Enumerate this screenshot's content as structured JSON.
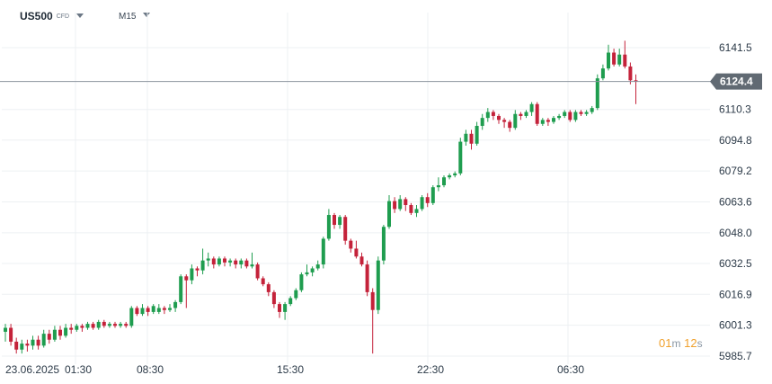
{
  "toolbar": {
    "symbol": "US500",
    "symbol_type": "CFD",
    "timeframe": "M15"
  },
  "countdown": {
    "minutes": "01",
    "min_unit": "m",
    "seconds": "12",
    "sec_unit": "s"
  },
  "colors": {
    "up": "#1f9d4f",
    "down": "#c4223a",
    "grid": "#edf0f3",
    "price_line": "#8c959e",
    "price_label_bg": "#616a73",
    "axis_text": "#2c3a48"
  },
  "chart_data": {
    "type": "candlestick",
    "title": "",
    "xlabel": "",
    "ylabel": "",
    "ylim": [
      5980,
      6150
    ],
    "y_ticks": [
      "6141.5",
      "6124.4",
      "6110.3",
      "6094.8",
      "6079.2",
      "6063.6",
      "6048.0",
      "6032.5",
      "6016.9",
      "6001.3",
      "5985.7"
    ],
    "current_price": "6124.4",
    "x_ticks": [
      "23.06.2025",
      "01:30",
      "08:30",
      "15:30",
      "22:30",
      "06:30"
    ],
    "grid": true,
    "candles": [
      [
        5998,
        6000,
        5993,
        6002
      ],
      [
        6000,
        5993,
        5991,
        6002
      ],
      [
        5993,
        5989,
        5987,
        5995
      ],
      [
        5989,
        5992,
        5987,
        5994
      ],
      [
        5992,
        5991,
        5988,
        5994
      ],
      [
        5991,
        5994,
        5989,
        5996
      ],
      [
        5994,
        5991,
        5989,
        5996
      ],
      [
        5991,
        5997,
        5990,
        5999
      ],
      [
        5997,
        5994,
        5992,
        5999
      ],
      [
        5994,
        5999,
        5993,
        6001
      ],
      [
        5999,
        5996,
        5994,
        6001
      ],
      [
        5996,
        6000,
        5995,
        6002
      ],
      [
        6000,
        5999,
        5997,
        6002
      ],
      [
        5999,
        6001,
        5998,
        6002
      ],
      [
        6001,
        6000,
        5998,
        6002
      ],
      [
        6000,
        6002,
        5999,
        6003
      ],
      [
        6002,
        6000,
        5999,
        6003
      ],
      [
        6000,
        6003,
        5999,
        6004
      ],
      [
        6003,
        6001,
        6000,
        6004
      ],
      [
        6001,
        6002,
        6000,
        6003
      ],
      [
        6002,
        6001,
        6000,
        6003
      ],
      [
        6001,
        6002,
        6000,
        6003
      ],
      [
        6002,
        6001,
        6000,
        6003
      ],
      [
        6001,
        6010,
        6000,
        6011
      ],
      [
        6010,
        6007,
        6006,
        6011
      ],
      [
        6007,
        6010,
        6006,
        6012
      ],
      [
        6010,
        6008,
        6006,
        6011
      ],
      [
        6008,
        6011,
        6007,
        6012
      ],
      [
        6008,
        6010,
        6007,
        6012
      ],
      [
        6010,
        6009,
        6007,
        6011
      ],
      [
        6009,
        6010,
        6008,
        6012
      ],
      [
        6010,
        6013,
        6008,
        6014
      ],
      [
        6013,
        6026,
        6012,
        6027
      ],
      [
        6026,
        6024,
        6010,
        6027
      ],
      [
        6024,
        6030,
        6022,
        6032
      ],
      [
        6030,
        6029,
        6026,
        6031
      ],
      [
        6029,
        6034,
        6027,
        6040
      ],
      [
        6034,
        6035,
        6031,
        6038
      ],
      [
        6035,
        6032,
        6030,
        6036
      ],
      [
        6032,
        6035,
        6031,
        6036
      ],
      [
        6035,
        6033,
        6031,
        6036
      ],
      [
        6033,
        6034,
        6031,
        6035
      ],
      [
        6034,
        6032,
        6030,
        6035
      ],
      [
        6032,
        6034,
        6030,
        6035
      ],
      [
        6034,
        6031,
        6030,
        6035
      ],
      [
        6031,
        6032,
        6030,
        6038
      ],
      [
        6032,
        6025,
        6024,
        6033
      ],
      [
        6025,
        6022,
        6021,
        6026
      ],
      [
        6022,
        6018,
        6016,
        6023
      ],
      [
        6018,
        6012,
        6010,
        6019
      ],
      [
        6012,
        6008,
        6005,
        6013
      ],
      [
        6008,
        6012,
        6004,
        6013
      ],
      [
        6012,
        6015,
        6011,
        6016
      ],
      [
        6015,
        6019,
        6014,
        6020
      ],
      [
        6019,
        6027,
        6018,
        6028
      ],
      [
        6027,
        6028,
        6026,
        6032
      ],
      [
        6028,
        6030,
        6026,
        6031
      ],
      [
        6030,
        6032,
        6029,
        6034
      ],
      [
        6032,
        6045,
        6030,
        6046
      ],
      [
        6045,
        6057,
        6044,
        6060
      ],
      [
        6057,
        6052,
        6050,
        6058
      ],
      [
        6052,
        6056,
        6050,
        6057
      ],
      [
        6056,
        6044,
        6042,
        6057
      ],
      [
        6044,
        6040,
        6038,
        6045
      ],
      [
        6040,
        6036,
        6035,
        6044
      ],
      [
        6036,
        6032,
        6031,
        6038
      ],
      [
        6032,
        6018,
        6016,
        6034
      ],
      [
        6018,
        6009,
        5987,
        6020
      ],
      [
        6009,
        6034,
        6007,
        6036
      ],
      [
        6034,
        6051,
        6032,
        6052
      ],
      [
        6051,
        6064,
        6050,
        6067
      ],
      [
        6064,
        6060,
        6058,
        6066
      ],
      [
        6060,
        6065,
        6059,
        6067
      ],
      [
        6065,
        6062,
        6059,
        6066
      ],
      [
        6062,
        6058,
        6057,
        6063
      ],
      [
        6058,
        6060,
        6056,
        6062
      ],
      [
        6060,
        6066,
        6059,
        6067
      ],
      [
        6066,
        6063,
        6061,
        6068
      ],
      [
        6063,
        6071,
        6062,
        6072
      ],
      [
        6071,
        6072,
        6069,
        6076
      ],
      [
        6072,
        6076,
        6071,
        6077
      ],
      [
        6076,
        6077,
        6075,
        6078
      ],
      [
        6077,
        6078,
        6076,
        6079
      ],
      [
        6078,
        6094,
        6077,
        6096
      ],
      [
        6094,
        6098,
        6092,
        6100
      ],
      [
        6098,
        6093,
        6090,
        6100
      ],
      [
        6093,
        6102,
        6092,
        6104
      ],
      [
        6102,
        6106,
        6100,
        6108
      ],
      [
        6106,
        6109,
        6104,
        6111
      ],
      [
        6109,
        6107,
        6105,
        6110
      ],
      [
        6107,
        6105,
        6103,
        6108
      ],
      [
        6105,
        6104,
        6101,
        6106
      ],
      [
        6104,
        6101,
        6099,
        6105
      ],
      [
        6101,
        6108,
        6100,
        6110
      ],
      [
        6108,
        6107,
        6105,
        6109
      ],
      [
        6107,
        6109,
        6106,
        6110
      ],
      [
        6109,
        6113,
        6107,
        6114
      ],
      [
        6113,
        6103,
        6102,
        6114
      ],
      [
        6103,
        6105,
        6102,
        6106
      ],
      [
        6105,
        6104,
        6102,
        6106
      ],
      [
        6104,
        6106,
        6103,
        6107
      ],
      [
        6106,
        6107,
        6105,
        6108
      ],
      [
        6107,
        6109,
        6106,
        6110
      ],
      [
        6109,
        6105,
        6104,
        6110
      ],
      [
        6105,
        6109,
        6104,
        6110
      ],
      [
        6109,
        6108,
        6107,
        6110
      ],
      [
        6108,
        6109,
        6107,
        6110
      ],
      [
        6109,
        6111,
        6108,
        6112
      ],
      [
        6111,
        6126,
        6110,
        6128
      ],
      [
        6126,
        6131,
        6125,
        6133
      ],
      [
        6131,
        6139,
        6130,
        6143
      ],
      [
        6139,
        6133,
        6132,
        6141
      ],
      [
        6133,
        6138,
        6132,
        6141
      ],
      [
        6138,
        6132,
        6131,
        6145
      ],
      [
        6132,
        6125,
        6123,
        6134
      ],
      [
        6125,
        6124.4,
        6113,
        6128
      ]
    ]
  }
}
